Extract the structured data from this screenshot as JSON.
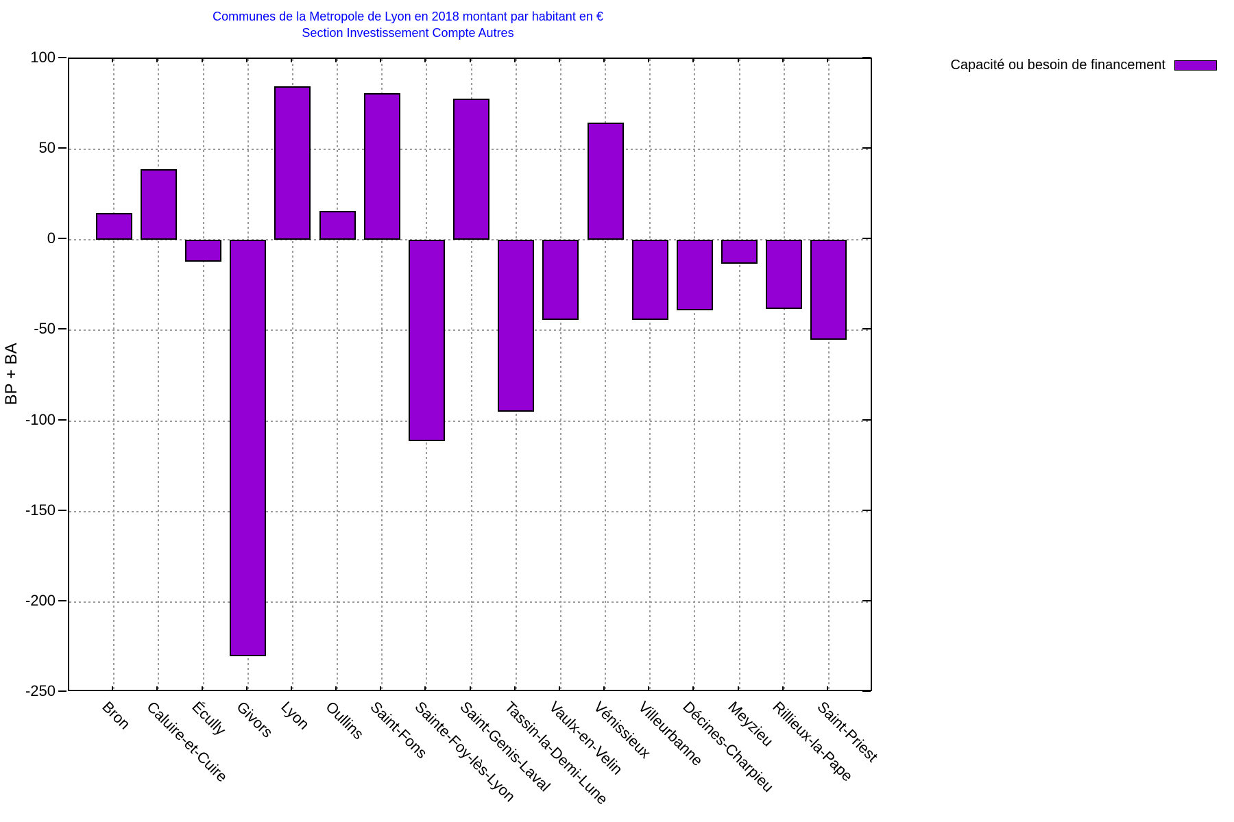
{
  "title": "Communes de la Metropole de Lyon en 2018 montant par habitant en €",
  "subtitle": "Section Investissement Compte Autres",
  "legend": {
    "label": "Capacité ou besoin de financement"
  },
  "chart_data": {
    "type": "bar",
    "title": "Communes de la Metropole de Lyon en 2018 montant par habitant en €",
    "subtitle": "Section Investissement Compte Autres",
    "ylabel": "BP + BA",
    "xlabel": "",
    "legend_entries": [
      "Capacité ou besoin de financement"
    ],
    "legend_position": "top-right-outside",
    "grid": true,
    "ylim": [
      -250,
      100
    ],
    "yticks": [
      100,
      50,
      0,
      -50,
      -100,
      -150,
      -200,
      -250
    ],
    "categories": [
      "Bron",
      "Caluire-et-Cuire",
      "Écully",
      "Givors",
      "Lyon",
      "Oullins",
      "Saint-Fons",
      "Sainte-Foy-lès-Lyon",
      "Saint-Genis-Laval",
      "Tassin-la-Demi-Lune",
      "Vaulx-en-Velin",
      "Vénissieux",
      "Villeurbanne",
      "Décines-Charpieu",
      "Meyzieu",
      "Rillieux-la-Pape",
      "Saint-Priest"
    ],
    "values": [
      15,
      39,
      -12,
      -230,
      85,
      16,
      81,
      -111,
      78,
      -95,
      -44,
      65,
      -44,
      -39,
      -13,
      -38,
      -55
    ],
    "colors": {
      "bar_fill": "#9400D3",
      "bar_border": "#000000",
      "title_text": "#0000ff",
      "grid_line": "#9b9b9b"
    }
  }
}
